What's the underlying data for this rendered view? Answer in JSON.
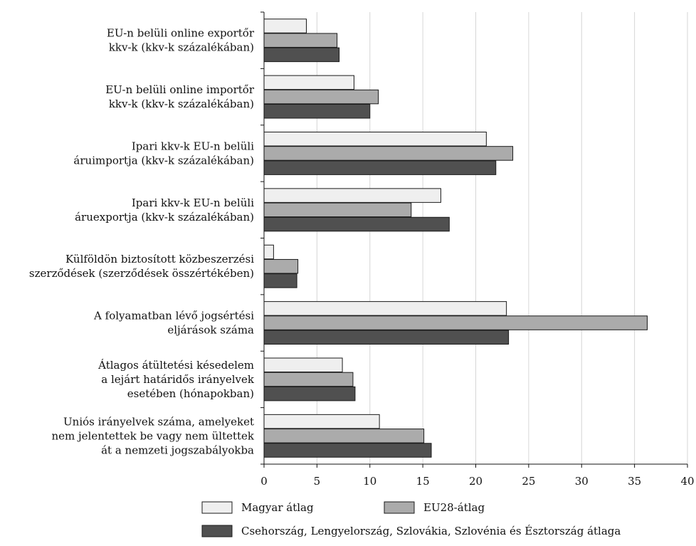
{
  "chart_data": {
    "type": "bar",
    "orientation": "horizontal",
    "categories": [
      [
        "EU-n belüli online exportőr",
        "kkv-k (kkv-k százalékában)"
      ],
      [
        "EU-n belüli online importőr",
        "kkv-k (kkv-k százalékában)"
      ],
      [
        "Ipari kkv-k EU-n belüli",
        "áruimportja (kkv-k százalékában)"
      ],
      [
        "Ipari kkv-k EU-n belüli",
        "áruexportja (kkv-k százalékában)"
      ],
      [
        "Külföldön biztosított közbeszerzési",
        "szerződések (szerződések összértékében)"
      ],
      [
        "A folyamatban lévő jogsértési",
        "eljárások száma"
      ],
      [
        "Átlagos átültetési késedelem",
        "a lejárt határidős irányelvek",
        "esetében (hónapokban)"
      ],
      [
        "Uniós irányelvek száma, amelyeket",
        "nem jelentettek be vagy nem ültettek",
        "át a nemzeti jogszabályokba"
      ]
    ],
    "series": [
      {
        "name": "Magyar átlag",
        "color": "#efefef",
        "values": [
          4.0,
          8.5,
          21.0,
          16.7,
          0.9,
          22.9,
          7.4,
          10.9
        ]
      },
      {
        "name": "EU28-átlag",
        "color": "#ababab",
        "values": [
          6.9,
          10.8,
          23.5,
          13.9,
          3.2,
          36.2,
          8.4,
          15.1
        ]
      },
      {
        "name": "Csehország, Lengyelország, Szlovákia, Szlovénia és Észtország átlaga",
        "color": "#505050",
        "values": [
          7.1,
          10.0,
          21.9,
          17.5,
          3.1,
          23.1,
          8.6,
          15.8
        ]
      }
    ],
    "xlim": [
      0,
      40
    ],
    "xticks": [
      "0",
      "5",
      "10",
      "15",
      "20",
      "25",
      "30",
      "35",
      "40"
    ],
    "grid": true,
    "legend_position": "bottom"
  }
}
